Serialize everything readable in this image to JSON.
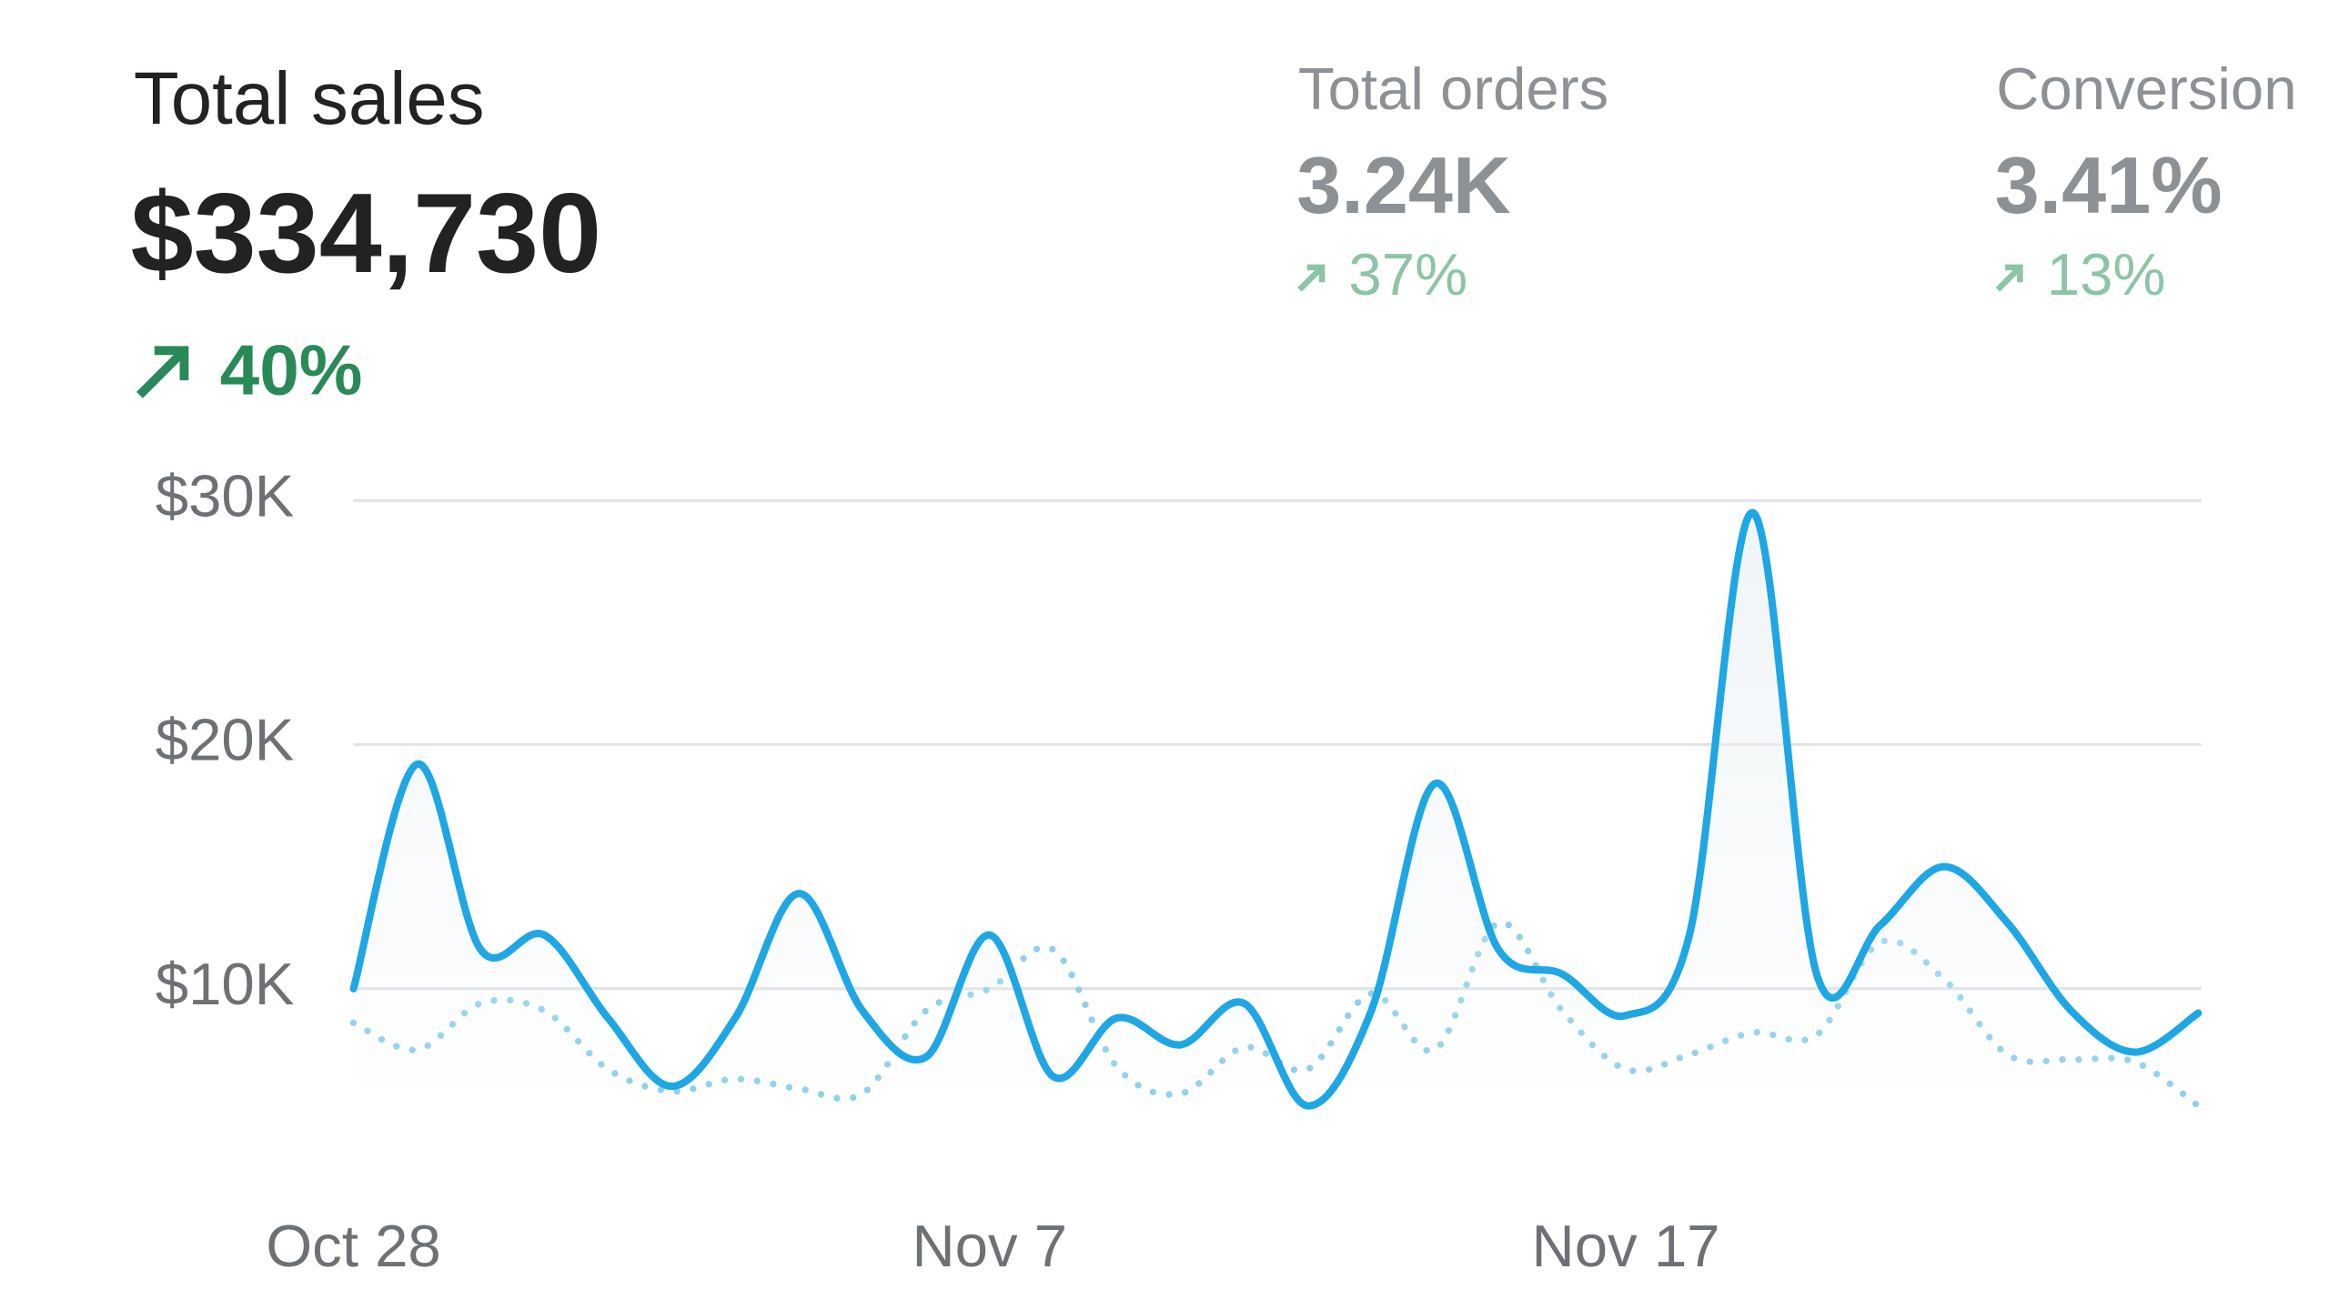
{
  "metrics": [
    {
      "label": "Total sales",
      "value": "$334,730",
      "change": "40%"
    },
    {
      "label": "Total orders",
      "value": "3.24K",
      "change": "37%"
    },
    {
      "label": "Conversion",
      "value": "3.41%",
      "change": "13%"
    }
  ],
  "chart_data": {
    "type": "line",
    "categories": [
      "Oct 28",
      null,
      null,
      null,
      null,
      null,
      null,
      null,
      null,
      null,
      "Nov 7",
      null,
      null,
      null,
      null,
      null,
      null,
      null,
      null,
      null,
      "Nov 17",
      null,
      null,
      null,
      null,
      null,
      null,
      null,
      null,
      null
    ],
    "series": [
      {
        "color": "#1ea7e4",
        "style": "solid",
        "values": [
          10000,
          19200,
          11600,
          12200,
          8800,
          6000,
          8800,
          13900,
          9100,
          7200,
          12200,
          6400,
          8800,
          7700,
          9400,
          5200,
          9100,
          18400,
          11600,
          10600,
          8900,
          12200,
          29500,
          10600,
          12600,
          15000,
          12700,
          9100,
          7400,
          9000
        ]
      },
      {
        "color": "#8fd0ea",
        "style": "dotted",
        "values": [
          8600,
          7500,
          9400,
          9100,
          6700,
          5800,
          6300,
          5900,
          5700,
          9100,
          10000,
          11600,
          6800,
          5700,
          7600,
          6700,
          9800,
          7500,
          12700,
          9100,
          6700,
          7300,
          8200,
          8100,
          11900,
          10400,
          7300,
          7100,
          7000,
          5200
        ]
      }
    ],
    "ylim": [
      0,
      30000
    ],
    "yticks": [
      {
        "value": 10000,
        "label": "$10K"
      },
      {
        "value": 20000,
        "label": "$20K"
      },
      {
        "value": 30000,
        "label": "$30K"
      }
    ],
    "grid": true
  }
}
